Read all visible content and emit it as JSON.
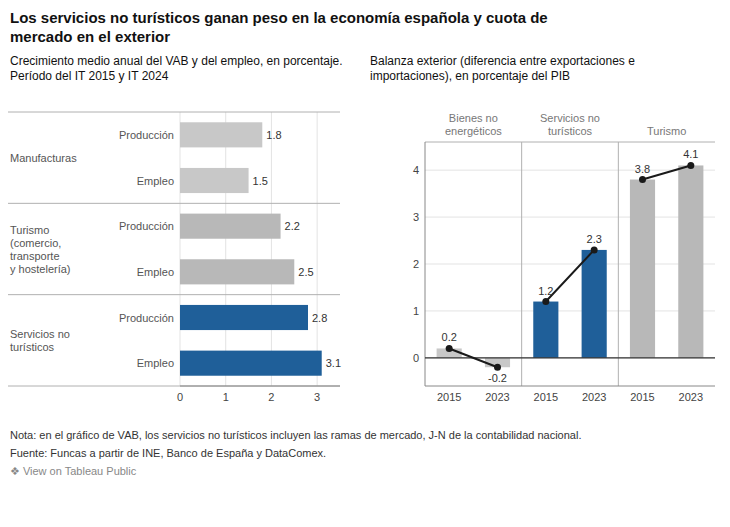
{
  "title": "Los servicios no turísticos ganan peso en la economía española y cuota de mercado en el exterior",
  "annotations": [
    "Nota: en el gráfico de VAB, los servicios no turísticos incluyen las ramas de mercado, J-N de la contabilidad nacional.",
    "Fuente: Funcas a partir de INE, Banco de España y DataComex.",
    "❖ View on Tableau Public"
  ],
  "chart_data": [
    {
      "type": "bar",
      "orientation": "horizontal",
      "title": "Crecimiento medio anual del VAB y del empleo, en porcentaje. Período del IT 2015 y IT 2024",
      "groups": [
        "Manufacturas",
        "Turismo\n(comercio,\ntransporte\ny hostelería)",
        "Servicios no\nturísticos"
      ],
      "categories": [
        "Producción",
        "Empleo",
        "Producción",
        "Empleo",
        "Producción",
        "Empleo"
      ],
      "values": [
        1.8,
        1.5,
        2.2,
        2.5,
        2.8,
        3.1
      ],
      "colors": [
        "#c8c8c8",
        "#c8c8c8",
        "#b8b8b8",
        "#b8b8b8",
        "#1f5f99",
        "#1f5f99"
      ],
      "xlim": [
        0,
        3.5
      ],
      "xticks": [
        0,
        1,
        2,
        3
      ],
      "grid": true,
      "data_labels": true
    },
    {
      "type": "bar",
      "title": "Balanza exterior (diferencia entre exportaciones e importaciones), en porcentaje del PIB",
      "groups": [
        "Bienes no\nenergéticos",
        "Servicios no\nturísticos",
        "Turismo"
      ],
      "categories": [
        "2015",
        "2023",
        "2015",
        "2023",
        "2015",
        "2023"
      ],
      "values": [
        0.2,
        -0.2,
        1.2,
        2.3,
        3.8,
        4.1
      ],
      "colors": [
        "#c8c8c8",
        "#c8c8c8",
        "#1f5f99",
        "#1f5f99",
        "#b8b8b8",
        "#b8b8b8"
      ],
      "color": "#1a1a1a",
      "marker": "circle",
      "line_style": "solid",
      "ylim": [
        -0.6,
        4.6
      ],
      "yticks": [
        0,
        1,
        2,
        3,
        4
      ],
      "grid": true,
      "data_labels": true
    }
  ]
}
